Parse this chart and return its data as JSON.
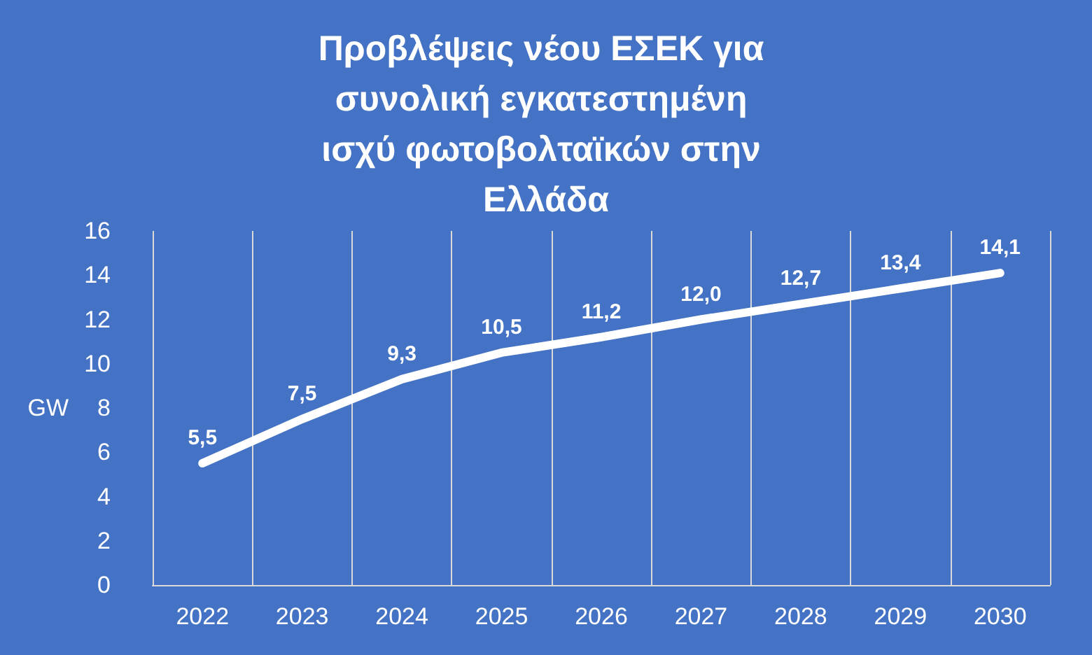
{
  "chart_data": {
    "type": "line",
    "title": "Προβλέψεις νέου ΕΣΕΚ για συνολική εγκατεστημένη ισχύ φωτοβολταϊκών στην Ελλάδα",
    "ylabel": "GW",
    "categories": [
      "2022",
      "2023",
      "2024",
      "2025",
      "2026",
      "2027",
      "2028",
      "2029",
      "2030"
    ],
    "series": [
      {
        "color": "#ffffff",
        "values": [
          5.5,
          7.5,
          9.3,
          10.5,
          11.2,
          12.0,
          12.7,
          13.4,
          14.1
        ],
        "value_labels": [
          "5,5",
          "7,5",
          "9,3",
          "10,5",
          "11,2",
          "12,0",
          "12,7",
          "13,4",
          "14,1"
        ]
      }
    ],
    "ylim": [
      0,
      16
    ],
    "yticks": [
      0,
      2,
      4,
      6,
      8,
      10,
      12,
      14,
      16
    ],
    "grid": "x",
    "marker": "circle",
    "line_style": "solid"
  }
}
